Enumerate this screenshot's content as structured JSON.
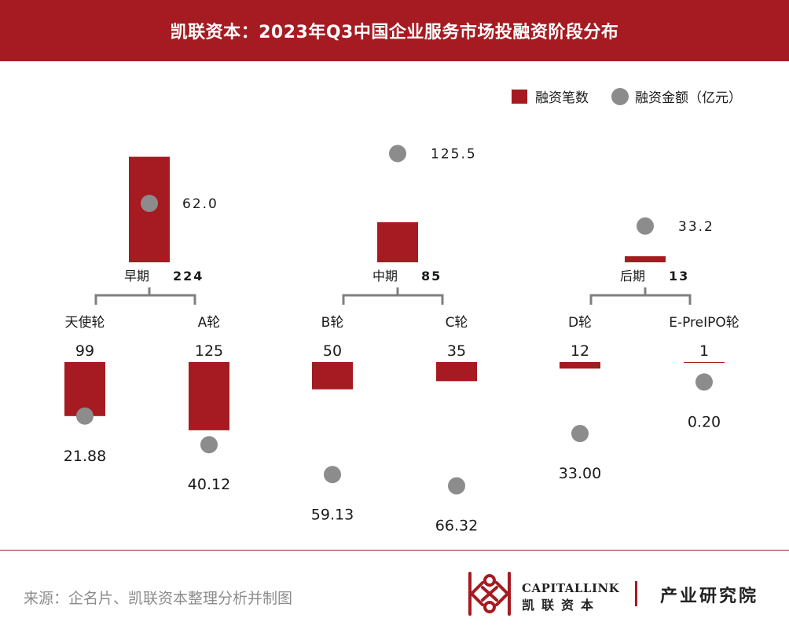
{
  "header": {
    "title": "凯联资本：2023年Q3中国企业服务市场投融资阶段分布"
  },
  "legend": {
    "count_label": "融资笔数",
    "amount_label": "融资金额（亿元）"
  },
  "colors": {
    "bar": "#a51b21",
    "dot": "#8c8c8c",
    "bracket": "#7f7f7f",
    "text": "#1a1a1a"
  },
  "chart_data": {
    "type": "bar",
    "title": "凯联资本：2023年Q3中国企业服务市场投融资阶段分布",
    "series": [
      {
        "name": "融资笔数",
        "unit": "笔"
      },
      {
        "name": "融资金额（亿元）",
        "unit": "亿元"
      }
    ],
    "stages": [
      {
        "name": "早期",
        "count": 224,
        "count_label": "224",
        "amount": 62.0,
        "amount_label": "62.0",
        "rounds": [
          {
            "name": "天使轮",
            "count": 99,
            "count_label": "99",
            "amount": 21.88,
            "amount_label": "21.88"
          },
          {
            "name": "A轮",
            "count": 125,
            "count_label": "125",
            "amount": 40.12,
            "amount_label": "40.12"
          }
        ]
      },
      {
        "name": "中期",
        "count": 85,
        "count_label": "85",
        "amount": 125.5,
        "amount_label": "125.5",
        "rounds": [
          {
            "name": "B轮",
            "count": 50,
            "count_label": "50",
            "amount": 59.13,
            "amount_label": "59.13"
          },
          {
            "name": "C轮",
            "count": 35,
            "count_label": "35",
            "amount": 66.32,
            "amount_label": "66.32"
          }
        ]
      },
      {
        "name": "后期",
        "count": 13,
        "count_label": "13",
        "amount": 33.2,
        "amount_label": "33.2",
        "rounds": [
          {
            "name": "D轮",
            "count": 12,
            "count_label": "12",
            "amount": 33.0,
            "amount_label": "33.00"
          },
          {
            "name": "E-PreIPO轮",
            "count": 1,
            "count_label": "1",
            "amount": 0.2,
            "amount_label": "0.20"
          }
        ]
      }
    ]
  },
  "footer": {
    "source": "来源：企名片、凯联资本整理分析并制图",
    "logo_en": "CAPITALLINK",
    "logo_cn": "凯联资本",
    "institute": "产业研究院"
  }
}
